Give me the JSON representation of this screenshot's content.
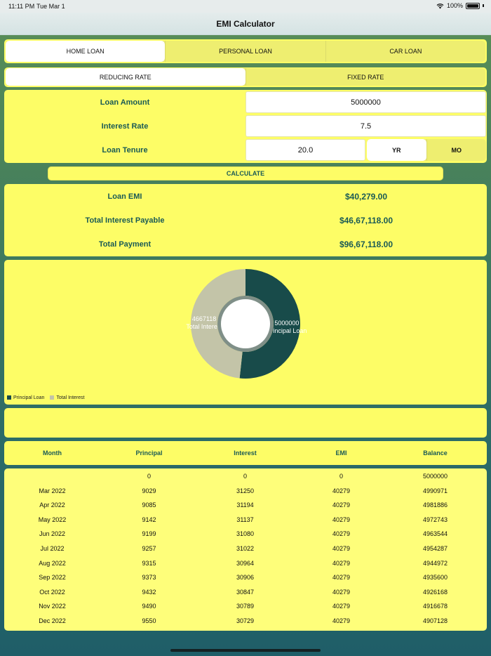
{
  "status": {
    "time": "11:11 PM",
    "date": "Tue Mar 1",
    "battery": "100%"
  },
  "nav": {
    "title": "EMI Calculator"
  },
  "loan_tabs": [
    "HOME LOAN",
    "PERSONAL LOAN",
    "CAR LOAN"
  ],
  "loan_tab_selected": 0,
  "rate_tabs": [
    "REDUCING RATE",
    "FIXED RATE"
  ],
  "rate_tab_selected": 0,
  "inputs": {
    "amount_label": "Loan Amount",
    "amount_value": "5000000",
    "rate_label": "Interest Rate",
    "rate_value": "7.5",
    "tenure_label": "Loan Tenure",
    "tenure_value": "20.0",
    "tenure_units": [
      "YR",
      "MO"
    ],
    "tenure_unit_selected": 0
  },
  "calculate_label": "CALCULATE",
  "results": {
    "emi_label": "Loan EMI",
    "emi_value": "$40,279.00",
    "interest_label": "Total Interest Payable",
    "interest_value": "$46,67,118.00",
    "payment_label": "Total Payment",
    "payment_value": "$96,67,118.00"
  },
  "chart_data": {
    "type": "pie",
    "style": "donut",
    "slices": [
      {
        "label": "Principal Loan",
        "value": 5000000,
        "color": "#184b4a",
        "text_value": "5000000"
      },
      {
        "label": "Total Interest",
        "value": 4667118,
        "color": "#c3c4a8",
        "text_value": "4667118"
      }
    ],
    "legend": [
      "Principal Loan",
      "Total Interest"
    ],
    "legend_position": "bottom-left"
  },
  "table": {
    "headers": [
      "Month",
      "Principal",
      "Interest",
      "EMI",
      "Balance"
    ],
    "rows": [
      [
        "",
        "0",
        "0",
        "0",
        "5000000"
      ],
      [
        "Mar 2022",
        "9029",
        "31250",
        "40279",
        "4990971"
      ],
      [
        "Apr 2022",
        "9085",
        "31194",
        "40279",
        "4981886"
      ],
      [
        "May 2022",
        "9142",
        "31137",
        "40279",
        "4972743"
      ],
      [
        "Jun 2022",
        "9199",
        "31080",
        "40279",
        "4963544"
      ],
      [
        "Jul 2022",
        "9257",
        "31022",
        "40279",
        "4954287"
      ],
      [
        "Aug 2022",
        "9315",
        "30964",
        "40279",
        "4944972"
      ],
      [
        "Sep 2022",
        "9373",
        "30906",
        "40279",
        "4935600"
      ],
      [
        "Oct 2022",
        "9432",
        "30847",
        "40279",
        "4926168"
      ],
      [
        "Nov 2022",
        "9490",
        "30789",
        "40279",
        "4916678"
      ],
      [
        "Dec 2022",
        "9550",
        "30729",
        "40279",
        "4907128"
      ]
    ]
  },
  "colors": {
    "panel": "#fdfd66",
    "accent_text": "#1a5a55"
  }
}
